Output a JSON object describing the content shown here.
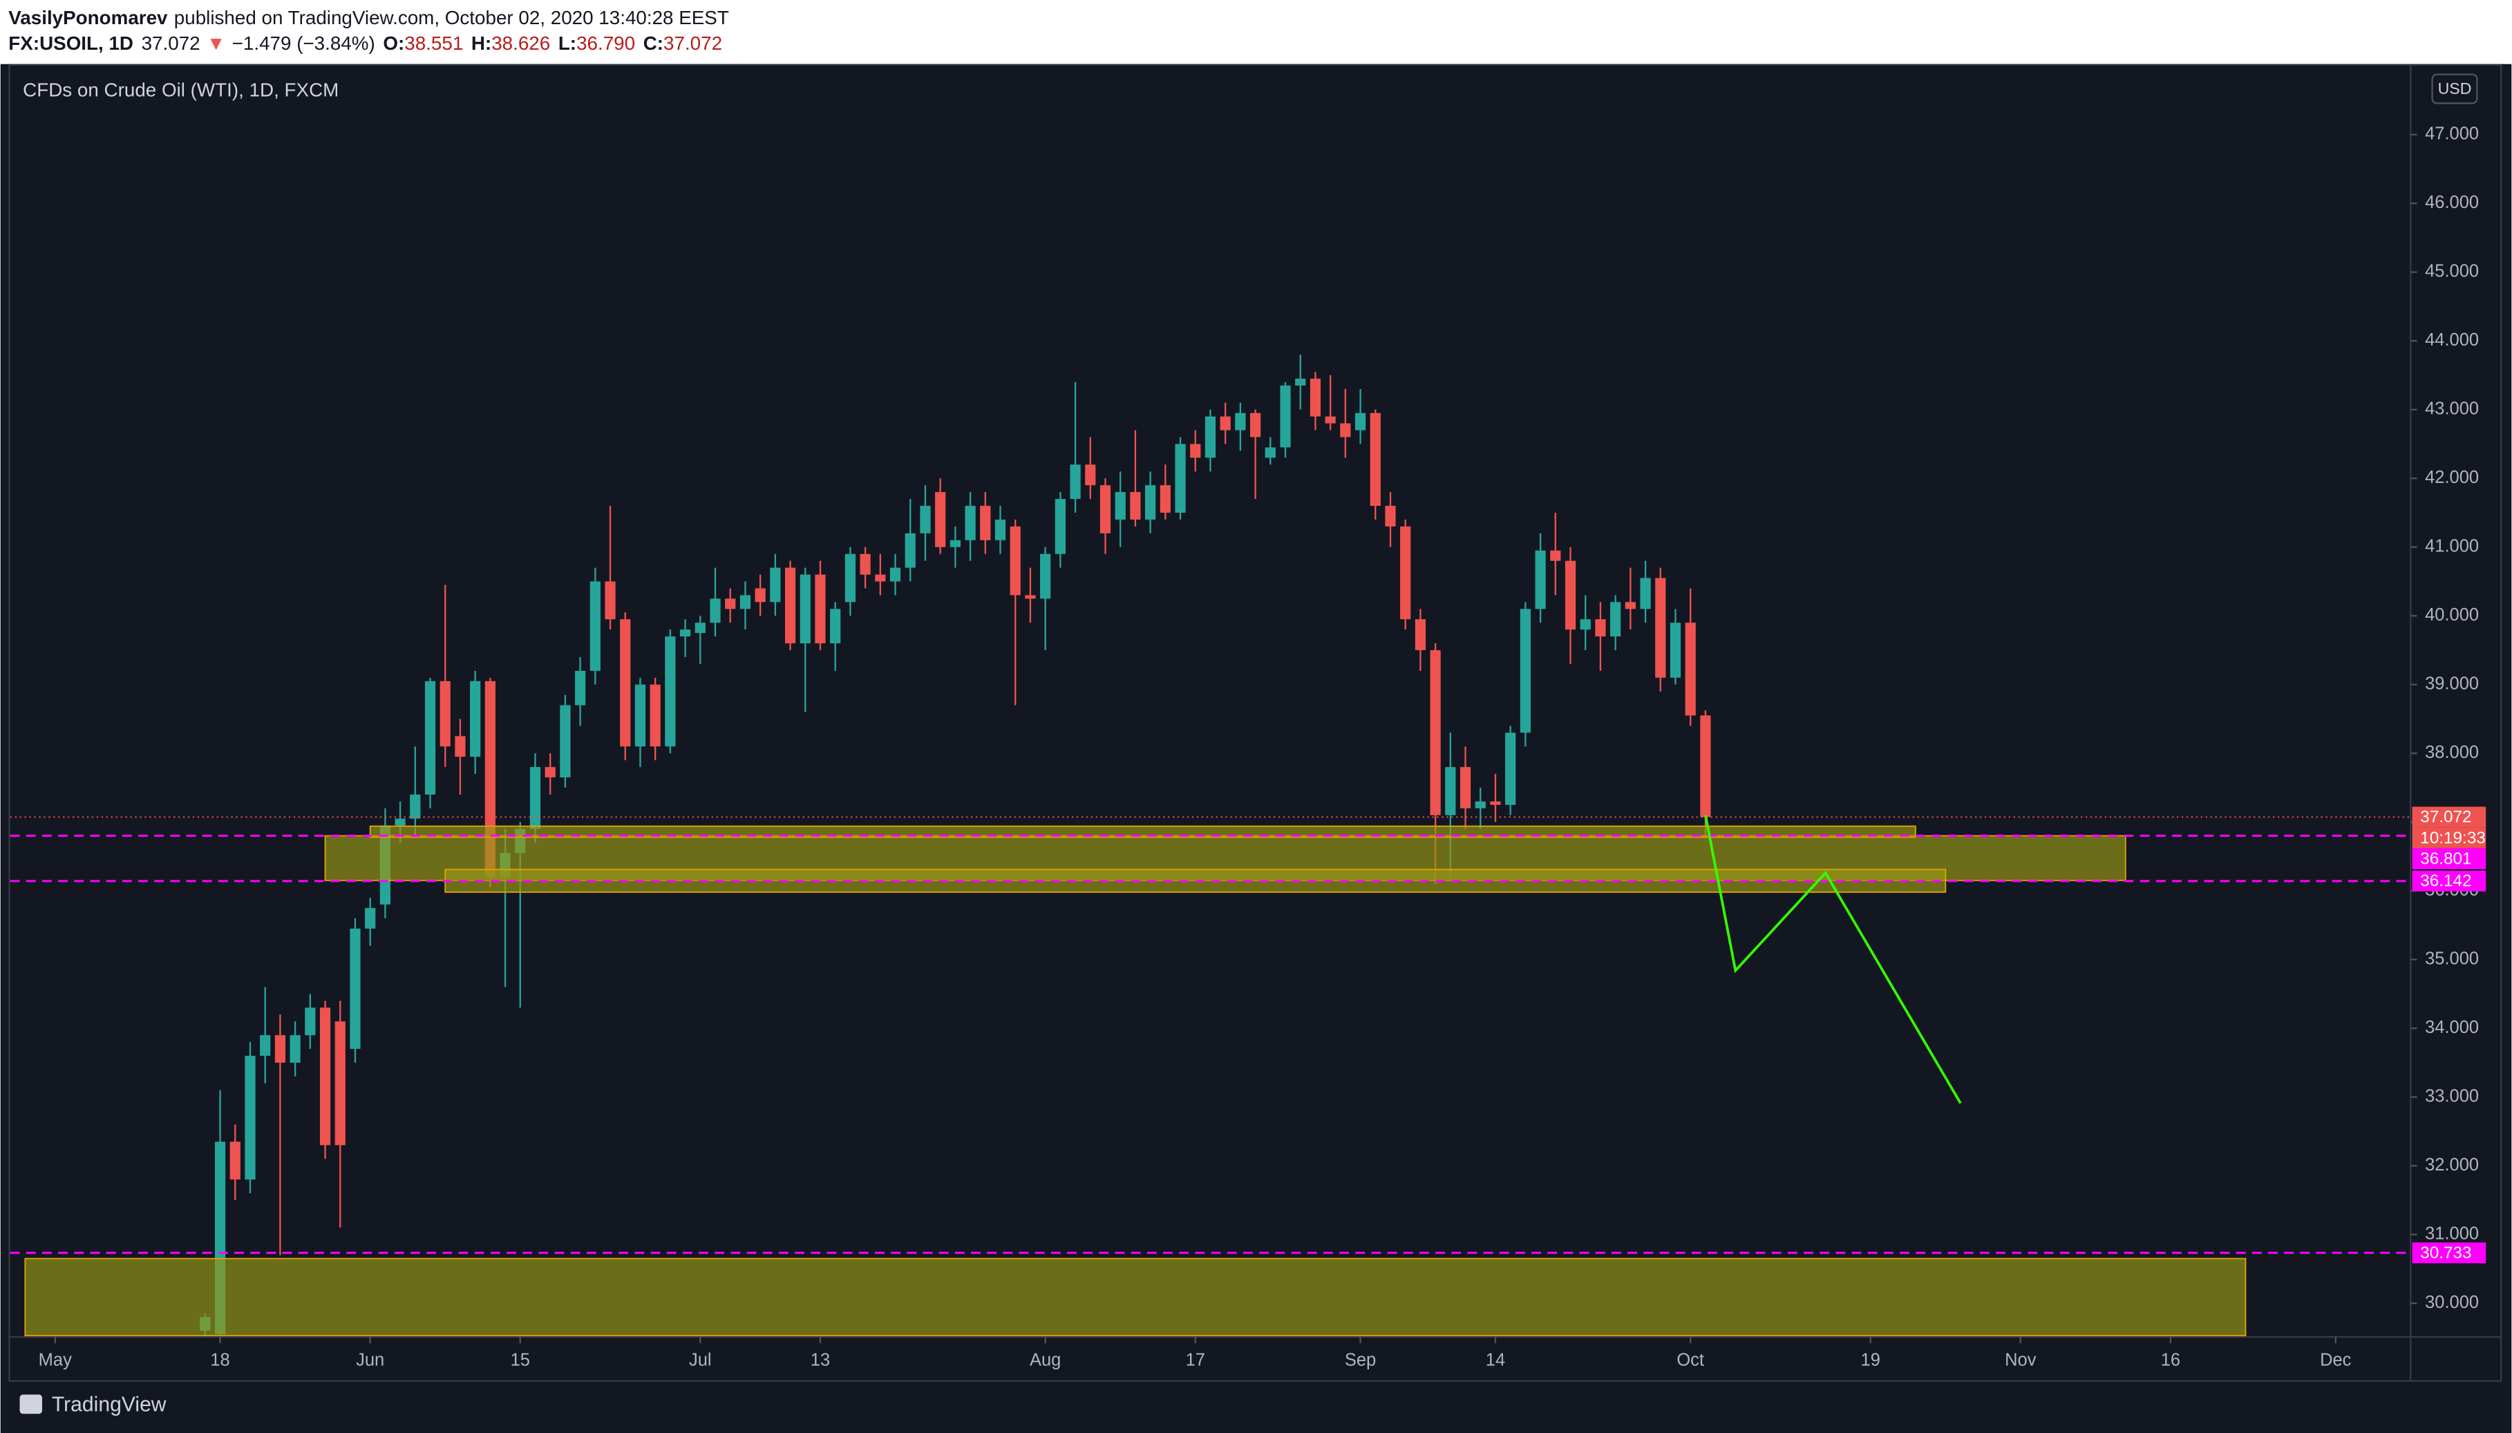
{
  "header": {
    "author": "VasilyPonomarev",
    "published": "published on TradingView.com, October 02, 2020 13:40:28 EEST",
    "symbol": "FX:USOIL, 1D",
    "last": "37.072",
    "arrow": "▼",
    "change": "−1.479 (−3.84%)",
    "ohlc": [
      {
        "label": "O:",
        "value": "38.551"
      },
      {
        "label": "H:",
        "value": "38.626"
      },
      {
        "label": "L:",
        "value": "36.790"
      },
      {
        "label": "C:",
        "value": "37.072"
      }
    ]
  },
  "currency": "USD",
  "logo": "TradingView",
  "countdown": "10:19:33",
  "chart_data": {
    "type": "candlestick",
    "title": "CFDs on Crude Oil (WTI), 1D, FXCM",
    "up_color": "#26a69a",
    "down_color": "#ef5350",
    "grid": false,
    "ylim": [
      29.51,
      47.98
    ],
    "yticks": [
      {
        "value": 30,
        "label": "30.000"
      },
      {
        "value": 31,
        "label": "31.000"
      },
      {
        "value": 32,
        "label": "32.000"
      },
      {
        "value": 33,
        "label": "33.000"
      },
      {
        "value": 34,
        "label": "34.000"
      },
      {
        "value": 35,
        "label": "35.000"
      },
      {
        "value": 36,
        "label": "36.000"
      },
      {
        "value": 37,
        "label": "37.000"
      },
      {
        "value": 38,
        "label": "38.000"
      },
      {
        "value": 39,
        "label": "39.000"
      },
      {
        "value": 40,
        "label": "40.000"
      },
      {
        "value": 41,
        "label": "41.000"
      },
      {
        "value": 42,
        "label": "42.000"
      },
      {
        "value": 43,
        "label": "43.000"
      },
      {
        "value": 44,
        "label": "44.000"
      },
      {
        "value": 45,
        "label": "45.000"
      },
      {
        "value": 46,
        "label": "46.000"
      },
      {
        "value": 47,
        "label": "47.000"
      }
    ],
    "xlim": [
      "2020-04-28",
      "2020-12-08"
    ],
    "xticks": [
      {
        "value": "2020-05-01",
        "label": "May"
      },
      {
        "value": "2020-05-18",
        "label": "18"
      },
      {
        "value": "2020-06-01",
        "label": "Jun"
      },
      {
        "value": "2020-06-15",
        "label": "15"
      },
      {
        "value": "2020-07-01",
        "label": "Jul"
      },
      {
        "value": "2020-07-13",
        "label": "13"
      },
      {
        "value": "2020-08-03",
        "label": "Aug"
      },
      {
        "value": "2020-08-17",
        "label": "17"
      },
      {
        "value": "2020-09-01",
        "label": "Sep"
      },
      {
        "value": "2020-09-14",
        "label": "14"
      },
      {
        "value": "2020-10-01",
        "label": "Oct"
      },
      {
        "value": "2020-10-19",
        "label": "19"
      },
      {
        "value": "2020-11-02",
        "label": "Nov"
      },
      {
        "value": "2020-11-16",
        "label": "16"
      },
      {
        "value": "2020-12-01",
        "label": "Dec"
      }
    ],
    "candles": [
      {
        "date": "2020-05-15",
        "open": 29.6,
        "high": 29.85,
        "low": 29.52,
        "close": 29.8
      },
      {
        "date": "2020-05-18",
        "open": 29.55,
        "high": 33.1,
        "low": 29.52,
        "close": 32.35
      },
      {
        "date": "2020-05-19",
        "open": 32.35,
        "high": 32.6,
        "low": 31.5,
        "close": 31.8
      },
      {
        "date": "2020-05-20",
        "open": 31.8,
        "high": 33.8,
        "low": 31.6,
        "close": 33.6
      },
      {
        "date": "2020-05-21",
        "open": 33.6,
        "high": 34.6,
        "low": 33.2,
        "close": 33.9
      },
      {
        "date": "2020-05-22",
        "open": 33.9,
        "high": 34.2,
        "low": 30.7,
        "close": 33.5
      },
      {
        "date": "2020-05-25",
        "open": 33.5,
        "high": 34.1,
        "low": 33.3,
        "close": 33.9
      },
      {
        "date": "2020-05-26",
        "open": 33.9,
        "high": 34.5,
        "low": 33.7,
        "close": 34.3
      },
      {
        "date": "2020-05-27",
        "open": 34.3,
        "high": 34.4,
        "low": 32.1,
        "close": 32.3
      },
      {
        "date": "2020-05-28",
        "open": 34.1,
        "high": 34.4,
        "low": 31.1,
        "close": 32.3
      },
      {
        "date": "2020-05-29",
        "open": 33.7,
        "high": 35.6,
        "low": 33.5,
        "close": 35.45
      },
      {
        "date": "2020-06-01",
        "open": 35.45,
        "high": 35.9,
        "low": 35.2,
        "close": 35.75
      },
      {
        "date": "2020-06-02",
        "open": 35.8,
        "high": 37.2,
        "low": 35.6,
        "close": 36.95
      },
      {
        "date": "2020-06-03",
        "open": 36.95,
        "high": 37.3,
        "low": 36.7,
        "close": 37.05
      },
      {
        "date": "2020-06-04",
        "open": 37.05,
        "high": 38.1,
        "low": 36.8,
        "close": 37.4
      },
      {
        "date": "2020-06-05",
        "open": 37.4,
        "high": 39.1,
        "low": 37.2,
        "close": 39.05
      },
      {
        "date": "2020-06-08",
        "open": 39.05,
        "high": 40.45,
        "low": 37.8,
        "close": 38.1
      },
      {
        "date": "2020-06-09",
        "open": 38.25,
        "high": 38.5,
        "low": 37.4,
        "close": 37.95
      },
      {
        "date": "2020-06-10",
        "open": 37.95,
        "high": 39.2,
        "low": 37.7,
        "close": 39.05
      },
      {
        "date": "2020-06-11",
        "open": 39.05,
        "high": 39.1,
        "low": 36.05,
        "close": 36.2
      },
      {
        "date": "2020-06-12",
        "open": 36.2,
        "high": 36.9,
        "low": 34.6,
        "close": 36.55
      },
      {
        "date": "2020-06-15",
        "open": 36.55,
        "high": 37.0,
        "low": 34.3,
        "close": 36.9
      },
      {
        "date": "2020-06-16",
        "open": 36.9,
        "high": 38.0,
        "low": 36.7,
        "close": 37.8
      },
      {
        "date": "2020-06-17",
        "open": 37.8,
        "high": 38.0,
        "low": 37.4,
        "close": 37.65
      },
      {
        "date": "2020-06-18",
        "open": 37.65,
        "high": 38.85,
        "low": 37.5,
        "close": 38.7
      },
      {
        "date": "2020-06-19",
        "open": 38.7,
        "high": 39.4,
        "low": 38.4,
        "close": 39.2
      },
      {
        "date": "2020-06-22",
        "open": 39.2,
        "high": 40.7,
        "low": 39.0,
        "close": 40.5
      },
      {
        "date": "2020-06-23",
        "open": 40.5,
        "high": 41.6,
        "low": 39.8,
        "close": 39.95
      },
      {
        "date": "2020-06-24",
        "open": 39.95,
        "high": 40.05,
        "low": 37.9,
        "close": 38.1
      },
      {
        "date": "2020-06-25",
        "open": 38.1,
        "high": 39.1,
        "low": 37.8,
        "close": 39.0
      },
      {
        "date": "2020-06-26",
        "open": 39.0,
        "high": 39.1,
        "low": 37.9,
        "close": 38.1
      },
      {
        "date": "2020-06-29",
        "open": 38.1,
        "high": 39.8,
        "low": 38.0,
        "close": 39.7
      },
      {
        "date": "2020-06-30",
        "open": 39.7,
        "high": 39.95,
        "low": 39.4,
        "close": 39.8
      },
      {
        "date": "2020-07-01",
        "open": 39.75,
        "high": 40.0,
        "low": 39.3,
        "close": 39.9
      },
      {
        "date": "2020-07-02",
        "open": 39.9,
        "high": 40.7,
        "low": 39.7,
        "close": 40.25
      },
      {
        "date": "2020-07-03",
        "open": 40.25,
        "high": 40.4,
        "low": 39.9,
        "close": 40.1
      },
      {
        "date": "2020-07-06",
        "open": 40.1,
        "high": 40.5,
        "low": 39.8,
        "close": 40.3
      },
      {
        "date": "2020-07-07",
        "open": 40.4,
        "high": 40.6,
        "low": 40.0,
        "close": 40.2
      },
      {
        "date": "2020-07-08",
        "open": 40.2,
        "high": 40.9,
        "low": 40.0,
        "close": 40.7
      },
      {
        "date": "2020-07-09",
        "open": 40.7,
        "high": 40.8,
        "low": 39.5,
        "close": 39.6
      },
      {
        "date": "2020-07-10",
        "open": 39.6,
        "high": 40.7,
        "low": 38.6,
        "close": 40.6
      },
      {
        "date": "2020-07-13",
        "open": 40.6,
        "high": 40.8,
        "low": 39.5,
        "close": 39.6
      },
      {
        "date": "2020-07-14",
        "open": 39.6,
        "high": 40.2,
        "low": 39.2,
        "close": 40.1
      },
      {
        "date": "2020-07-15",
        "open": 40.2,
        "high": 41.0,
        "low": 40.0,
        "close": 40.9
      },
      {
        "date": "2020-07-16",
        "open": 40.9,
        "high": 41.0,
        "low": 40.4,
        "close": 40.6
      },
      {
        "date": "2020-07-17",
        "open": 40.6,
        "high": 40.9,
        "low": 40.3,
        "close": 40.5
      },
      {
        "date": "2020-07-20",
        "open": 40.5,
        "high": 40.9,
        "low": 40.3,
        "close": 40.7
      },
      {
        "date": "2020-07-21",
        "open": 40.7,
        "high": 41.7,
        "low": 40.5,
        "close": 41.2
      },
      {
        "date": "2020-07-22",
        "open": 41.2,
        "high": 41.9,
        "low": 40.8,
        "close": 41.6
      },
      {
        "date": "2020-07-23",
        "open": 41.8,
        "high": 42.0,
        "low": 40.9,
        "close": 41.0
      },
      {
        "date": "2020-07-24",
        "open": 41.0,
        "high": 41.3,
        "low": 40.7,
        "close": 41.1
      },
      {
        "date": "2020-07-27",
        "open": 41.1,
        "high": 41.8,
        "low": 40.8,
        "close": 41.6
      },
      {
        "date": "2020-07-28",
        "open": 41.6,
        "high": 41.8,
        "low": 40.9,
        "close": 41.1
      },
      {
        "date": "2020-07-29",
        "open": 41.1,
        "high": 41.6,
        "low": 40.9,
        "close": 41.4
      },
      {
        "date": "2020-07-30",
        "open": 41.3,
        "high": 41.4,
        "low": 38.7,
        "close": 40.3
      },
      {
        "date": "2020-07-31",
        "open": 40.3,
        "high": 40.7,
        "low": 39.9,
        "close": 40.25
      },
      {
        "date": "2020-08-03",
        "open": 40.25,
        "high": 41.0,
        "low": 39.5,
        "close": 40.9
      },
      {
        "date": "2020-08-04",
        "open": 40.9,
        "high": 41.8,
        "low": 40.7,
        "close": 41.7
      },
      {
        "date": "2020-08-05",
        "open": 41.7,
        "high": 43.4,
        "low": 41.5,
        "close": 42.2
      },
      {
        "date": "2020-08-06",
        "open": 42.2,
        "high": 42.6,
        "low": 41.7,
        "close": 41.9
      },
      {
        "date": "2020-08-07",
        "open": 41.9,
        "high": 42.0,
        "low": 40.9,
        "close": 41.2
      },
      {
        "date": "2020-08-10",
        "open": 41.4,
        "high": 42.1,
        "low": 41.0,
        "close": 41.8
      },
      {
        "date": "2020-08-11",
        "open": 41.8,
        "high": 42.7,
        "low": 41.3,
        "close": 41.4
      },
      {
        "date": "2020-08-12",
        "open": 41.4,
        "high": 42.1,
        "low": 41.2,
        "close": 41.9
      },
      {
        "date": "2020-08-13",
        "open": 41.9,
        "high": 42.2,
        "low": 41.4,
        "close": 41.5
      },
      {
        "date": "2020-08-14",
        "open": 41.5,
        "high": 42.6,
        "low": 41.4,
        "close": 42.5
      },
      {
        "date": "2020-08-17",
        "open": 42.5,
        "high": 42.7,
        "low": 42.1,
        "close": 42.3
      },
      {
        "date": "2020-08-18",
        "open": 42.3,
        "high": 43.0,
        "low": 42.1,
        "close": 42.9
      },
      {
        "date": "2020-08-19",
        "open": 42.9,
        "high": 43.1,
        "low": 42.5,
        "close": 42.7
      },
      {
        "date": "2020-08-20",
        "open": 42.7,
        "high": 43.1,
        "low": 42.4,
        "close": 42.95
      },
      {
        "date": "2020-08-21",
        "open": 42.95,
        "high": 43.0,
        "low": 41.7,
        "close": 42.6
      },
      {
        "date": "2020-08-24",
        "open": 42.3,
        "high": 42.6,
        "low": 42.2,
        "close": 42.45
      },
      {
        "date": "2020-08-25",
        "open": 42.45,
        "high": 43.4,
        "low": 42.3,
        "close": 43.35
      },
      {
        "date": "2020-08-26",
        "open": 43.35,
        "high": 43.8,
        "low": 43.0,
        "close": 43.45
      },
      {
        "date": "2020-08-27",
        "open": 43.45,
        "high": 43.55,
        "low": 42.7,
        "close": 42.9
      },
      {
        "date": "2020-08-28",
        "open": 42.9,
        "high": 43.5,
        "low": 42.7,
        "close": 42.8
      },
      {
        "date": "2020-08-31",
        "open": 42.8,
        "high": 43.3,
        "low": 42.3,
        "close": 42.6
      },
      {
        "date": "2020-09-01",
        "open": 42.7,
        "high": 43.3,
        "low": 42.5,
        "close": 42.95
      },
      {
        "date": "2020-09-02",
        "open": 42.95,
        "high": 43.0,
        "low": 41.4,
        "close": 41.6
      },
      {
        "date": "2020-09-03",
        "open": 41.6,
        "high": 41.8,
        "low": 41.0,
        "close": 41.3
      },
      {
        "date": "2020-09-04",
        "open": 41.3,
        "high": 41.4,
        "low": 39.8,
        "close": 39.95
      },
      {
        "date": "2020-09-07",
        "open": 39.95,
        "high": 40.1,
        "low": 39.2,
        "close": 39.5
      },
      {
        "date": "2020-09-08",
        "open": 39.5,
        "high": 39.6,
        "low": 36.1,
        "close": 37.1
      },
      {
        "date": "2020-09-09",
        "open": 37.1,
        "high": 38.3,
        "low": 36.2,
        "close": 37.8
      },
      {
        "date": "2020-09-10",
        "open": 37.8,
        "high": 38.1,
        "low": 36.9,
        "close": 37.2
      },
      {
        "date": "2020-09-11",
        "open": 37.2,
        "high": 37.5,
        "low": 36.9,
        "close": 37.3
      },
      {
        "date": "2020-09-14",
        "open": 37.3,
        "high": 37.7,
        "low": 37.0,
        "close": 37.25
      },
      {
        "date": "2020-09-15",
        "open": 37.25,
        "high": 38.4,
        "low": 37.1,
        "close": 38.3
      },
      {
        "date": "2020-09-16",
        "open": 38.3,
        "high": 40.2,
        "low": 38.1,
        "close": 40.1
      },
      {
        "date": "2020-09-17",
        "open": 40.1,
        "high": 41.2,
        "low": 39.9,
        "close": 40.95
      },
      {
        "date": "2020-09-18",
        "open": 40.95,
        "high": 41.5,
        "low": 40.3,
        "close": 40.8
      },
      {
        "date": "2020-09-21",
        "open": 40.8,
        "high": 41.0,
        "low": 39.3,
        "close": 39.8
      },
      {
        "date": "2020-09-22",
        "open": 39.8,
        "high": 40.3,
        "low": 39.5,
        "close": 39.95
      },
      {
        "date": "2020-09-23",
        "open": 39.95,
        "high": 40.2,
        "low": 39.2,
        "close": 39.7
      },
      {
        "date": "2020-09-24",
        "open": 39.7,
        "high": 40.3,
        "low": 39.5,
        "close": 40.2
      },
      {
        "date": "2020-09-25",
        "open": 40.2,
        "high": 40.7,
        "low": 39.8,
        "close": 40.1
      },
      {
        "date": "2020-09-28",
        "open": 40.1,
        "high": 40.8,
        "low": 39.9,
        "close": 40.55
      },
      {
        "date": "2020-09-29",
        "open": 40.55,
        "high": 40.7,
        "low": 38.9,
        "close": 39.1
      },
      {
        "date": "2020-09-30",
        "open": 39.1,
        "high": 40.1,
        "low": 39.0,
        "close": 39.9
      },
      {
        "date": "2020-10-01",
        "open": 39.9,
        "high": 40.4,
        "low": 38.4,
        "close": 38.55
      },
      {
        "date": "2020-10-02",
        "open": 38.551,
        "high": 38.626,
        "low": 36.79,
        "close": 37.072
      }
    ],
    "price_line": {
      "value": 37.072,
      "color": "#ef5350"
    },
    "horizontal_lines": [
      {
        "value": 36.801,
        "color": "#ff00ff"
      },
      {
        "value": 36.142,
        "color": "#ff00ff"
      },
      {
        "value": 30.733,
        "color": "#ff00ff"
      }
    ],
    "zones": [
      {
        "from": "2020-05-27",
        "to": "2020-11-11",
        "top": 36.8,
        "bottom": 36.15
      },
      {
        "from": "2020-06-01",
        "to": "2020-10-22",
        "top": 36.94,
        "bottom": 36.78
      },
      {
        "from": "2020-06-08",
        "to": "2020-10-26",
        "top": 36.31,
        "bottom": 35.98
      },
      {
        "from": "2020-04-29",
        "to": "2020-11-23",
        "top": 30.65,
        "bottom": 29.53
      }
    ],
    "projection": {
      "color": "#33ff00",
      "points": [
        {
          "date": "2020-10-02",
          "value": 37.1
        },
        {
          "date": "2020-10-06",
          "value": 34.84
        },
        {
          "date": "2020-10-14",
          "value": 36.26
        },
        {
          "date": "2020-10-27",
          "value": 32.91
        }
      ]
    }
  }
}
